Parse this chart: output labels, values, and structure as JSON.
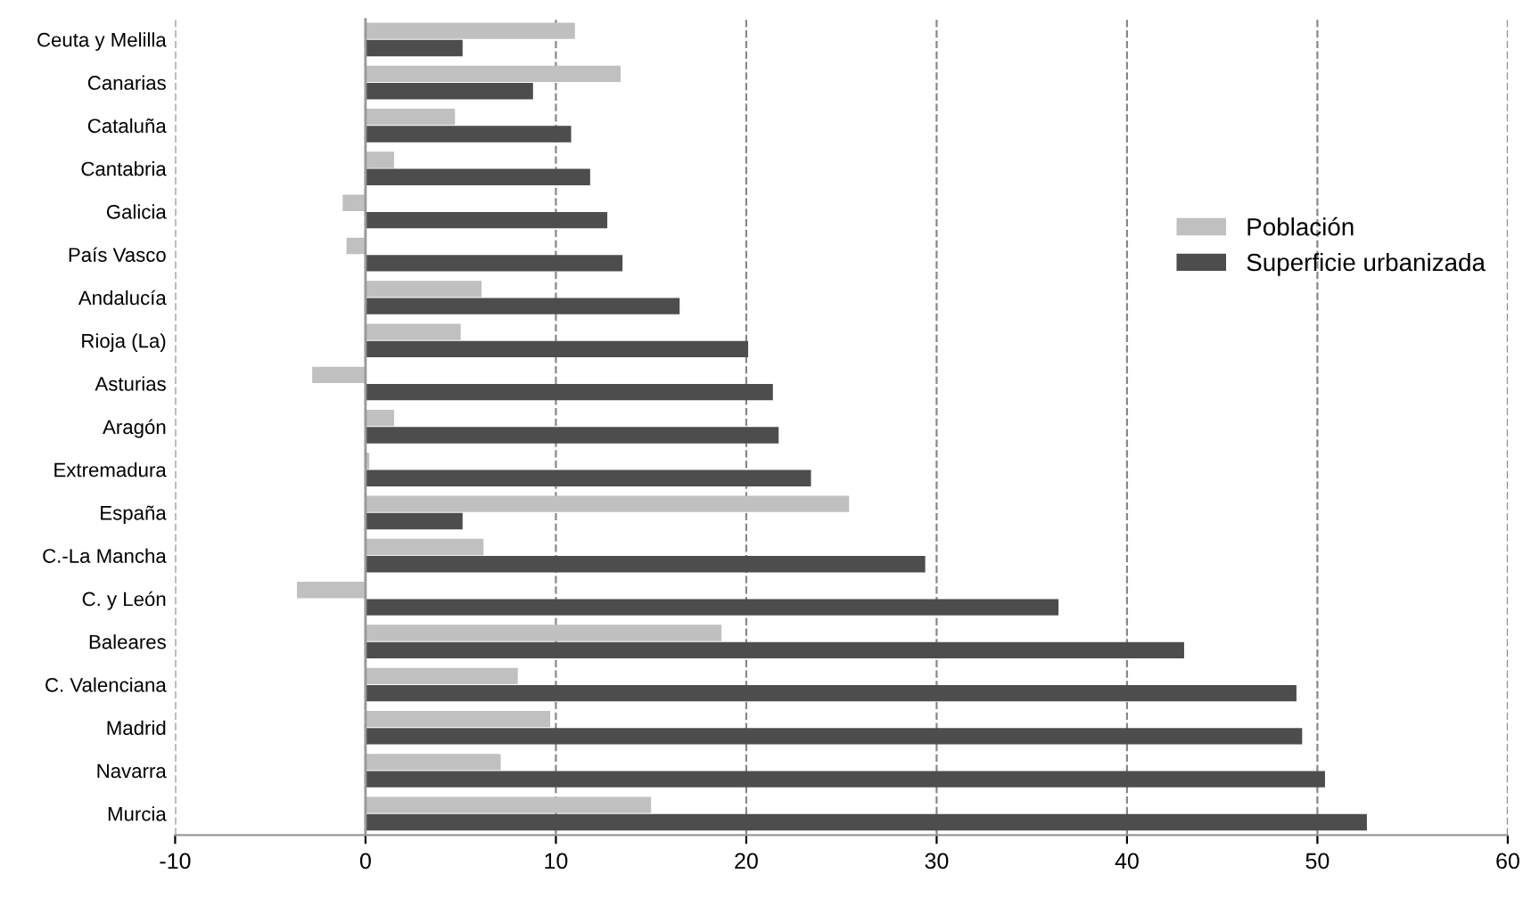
{
  "chart_data": {
    "type": "bar",
    "orientation": "horizontal",
    "categories": [
      "Ceuta y Melilla",
      "Canarias",
      "Cataluña",
      "Cantabria",
      "Galicia",
      "País Vasco",
      "Andalucía",
      "Rioja (La)",
      "Asturias",
      "Aragón",
      "Extremadura",
      "España",
      "C.-La Mancha",
      "C. y León",
      "Baleares",
      "C. Valenciana",
      "Madrid",
      "Navarra",
      "Murcia"
    ],
    "series": [
      {
        "name": "Población",
        "color": "#c0c0c0",
        "values": [
          11.0,
          13.4,
          4.7,
          1.5,
          -1.2,
          -1.0,
          6.1,
          5.0,
          -2.8,
          1.5,
          0.2,
          25.4,
          6.2,
          -3.6,
          18.7,
          8.0,
          9.7,
          7.1,
          15.0
        ]
      },
      {
        "name": "Superficie urbanizada",
        "color": "#4d4d4d",
        "values": [
          5.1,
          8.8,
          10.8,
          11.8,
          12.7,
          13.5,
          16.5,
          20.1,
          21.4,
          21.7,
          23.4,
          5.1,
          29.4,
          36.4,
          43.0,
          48.9,
          49.2,
          50.4,
          52.6
        ]
      }
    ],
    "xlim": [
      -10,
      60
    ],
    "xticks": [
      -10,
      0,
      10,
      20,
      30,
      40,
      50,
      60
    ],
    "grid": "x",
    "legend": "right"
  }
}
